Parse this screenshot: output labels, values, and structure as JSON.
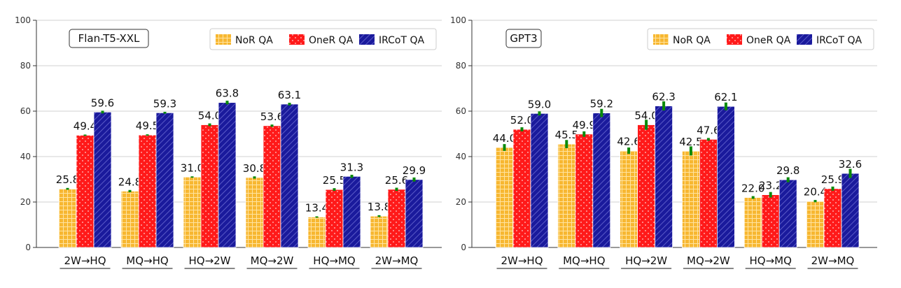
{
  "chart_data": [
    {
      "type": "bar",
      "title": "",
      "badge": "Flan-T5-XXL",
      "xlabel": "",
      "ylabel": "",
      "ylim": [
        0,
        100
      ],
      "yticks": [
        0,
        20,
        40,
        60,
        80,
        100
      ],
      "grid": true,
      "legend_position": "top-right",
      "categories": [
        "2W→HQ",
        "MQ→HQ",
        "HQ→2W",
        "MQ→2W",
        "HQ→MQ",
        "2W→MQ"
      ],
      "series": [
        {
          "name": "NoR QA",
          "color": "#F7B731",
          "pattern": "grid",
          "values": [
            25.8,
            24.8,
            31.0,
            30.8,
            13.4,
            13.8
          ],
          "errors": [
            0.4,
            0.5,
            0.3,
            0.5,
            0.3,
            0.4
          ]
        },
        {
          "name": "OneR QA",
          "color": "#FF1A1A",
          "pattern": "dots",
          "values": [
            49.4,
            49.5,
            54.0,
            53.6,
            25.5,
            25.6
          ],
          "errors": [
            0.3,
            0.3,
            0.6,
            0.5,
            0.6,
            0.7
          ]
        },
        {
          "name": "IRCoT QA",
          "color": "#1A1A9C",
          "pattern": "hatch",
          "values": [
            59.6,
            59.3,
            63.8,
            63.1,
            31.3,
            29.9
          ],
          "errors": [
            0.6,
            0.4,
            0.8,
            0.6,
            0.7,
            0.9
          ]
        }
      ]
    },
    {
      "type": "bar",
      "title": "",
      "badge": "GPT3",
      "xlabel": "",
      "ylabel": "",
      "ylim": [
        0,
        100
      ],
      "yticks": [
        0,
        20,
        40,
        60,
        80,
        100
      ],
      "grid": true,
      "legend_position": "top-right",
      "categories": [
        "2W→HQ",
        "MQ→HQ",
        "HQ→2W",
        "MQ→2W",
        "HQ→MQ",
        "2W→MQ"
      ],
      "series": [
        {
          "name": "NoR QA",
          "color": "#F7B731",
          "pattern": "grid",
          "values": [
            44.0,
            45.5,
            42.6,
            42.5,
            22.0,
            20.4
          ],
          "errors": [
            1.5,
            1.8,
            1.4,
            2.0,
            0.6,
            0.5
          ]
        },
        {
          "name": "OneR QA",
          "color": "#FF1A1A",
          "pattern": "dots",
          "values": [
            52.0,
            49.9,
            54.0,
            47.6,
            23.2,
            25.9
          ],
          "errors": [
            0.9,
            1.2,
            2.2,
            0.6,
            1.2,
            0.9
          ]
        },
        {
          "name": "IRCoT QA",
          "color": "#1A1A9C",
          "pattern": "hatch",
          "values": [
            59.0,
            59.2,
            62.3,
            62.1,
            29.8,
            32.6
          ],
          "errors": [
            0.9,
            1.8,
            2.0,
            1.7,
            1.1,
            2.0
          ]
        }
      ]
    }
  ]
}
